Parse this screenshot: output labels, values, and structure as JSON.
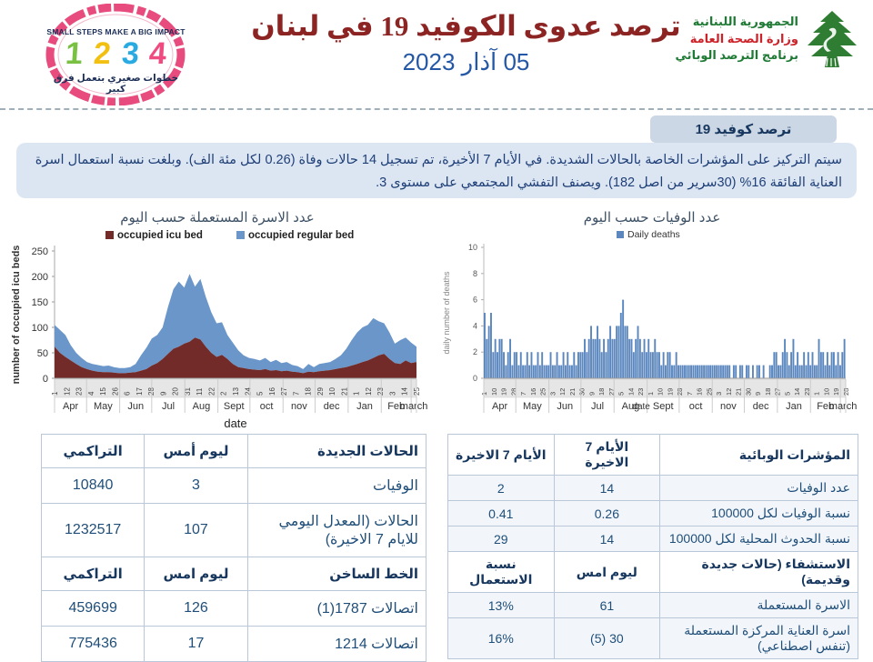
{
  "header": {
    "stamp_logo": {
      "top_text": "SMALL STEPS MAKE A BIG IMPACT",
      "digits": [
        "1",
        "2",
        "3",
        "4"
      ],
      "bottom_text": "خطوات صغيري بتعمل فرق كبير"
    },
    "title": "ترصد عدوى الكوفيد 19 في لبنان",
    "date": "05 آذار 2023",
    "ministry_logo": {
      "line1": "الجمهورية اللبنانية",
      "line2": "وزارة الصحة العامة",
      "line3": "برنامج الترصد الوبائي"
    }
  },
  "intro": {
    "tab_label": "ترصد كوفيد 19",
    "paragraph": "سيتم التركيز على المؤشرات الخاصة بالحالات الشديدة. في الأيام 7 الأخيرة، تم تسجيل 14 حالات وفاة  (0.26 لكل مئة الف). وبلغت نسبة استعمال اسرة العناية الفائقة 16% (30سرير من اصل 182). ويصنف التفشي المجتمعي على مستوى 3."
  },
  "colors": {
    "title_maroon": "#8b2422",
    "date_blue": "#2457a5",
    "navy": "#17375e",
    "icu_area": "#722b28",
    "regular_area": "#6b96c9",
    "death_bar": "#5b87be"
  },
  "chart_data": [
    {
      "type": "area",
      "title": "عدد الاسرة المستعملة حسب اليوم",
      "xlabel": "date",
      "ylabel": "number of occupied icu beds",
      "ylim": [
        0,
        250
      ],
      "yticks": [
        0,
        50,
        100,
        150,
        200,
        250
      ],
      "stacked": true,
      "legend": [
        "occupied icu bed",
        "occupied regular bed"
      ],
      "legend_colors": [
        "#722b28",
        "#6b96c9"
      ],
      "legend_position": "top",
      "grid": false,
      "x_day_ticks": [
        "1",
        "12",
        "23",
        "4",
        "15",
        "26",
        "6",
        "17",
        "28",
        "9",
        "20",
        "31",
        "11",
        "22",
        "2",
        "13",
        "24",
        "5",
        "16",
        "27",
        "7",
        "18",
        "29",
        "10",
        "21",
        "1",
        "12",
        "23",
        "3",
        "14",
        "25"
      ],
      "months": [
        "Apr",
        "May",
        "Jun",
        "Jul",
        "Aug",
        "Sept",
        "oct",
        "nov",
        "dec",
        "Jan",
        "Feb",
        "march"
      ],
      "month_day_boundaries": [
        0,
        30,
        61,
        91,
        122,
        153,
        183,
        214,
        244,
        275,
        306,
        334,
        339
      ],
      "sample_step_days": 5,
      "series": [
        {
          "name": "occupied icu bed",
          "values": [
            62,
            50,
            42,
            35,
            28,
            22,
            18,
            15,
            13,
            12,
            12,
            11,
            10,
            10,
            11,
            12,
            15,
            18,
            25,
            30,
            38,
            48,
            58,
            62,
            68,
            72,
            80,
            76,
            62,
            50,
            42,
            46,
            38,
            28,
            22,
            20,
            18,
            17,
            16,
            18,
            15,
            16,
            14,
            15,
            13,
            12,
            10,
            13,
            12,
            14,
            15,
            16,
            18,
            20,
            22,
            25,
            28,
            32,
            35,
            40,
            45,
            48,
            38,
            30,
            28,
            35,
            30,
            32
          ]
        },
        {
          "name": "occupied regular bed",
          "values": [
            43,
            45,
            43,
            30,
            22,
            18,
            14,
            13,
            13,
            12,
            13,
            11,
            10,
            10,
            11,
            16,
            30,
            42,
            53,
            55,
            62,
            92,
            117,
            128,
            110,
            133,
            100,
            119,
            98,
            80,
            66,
            64,
            47,
            42,
            33,
            25,
            22,
            21,
            19,
            22,
            17,
            20,
            16,
            17,
            13,
            12,
            8,
            15,
            10,
            14,
            15,
            16,
            20,
            25,
            36,
            50,
            62,
            68,
            70,
            78,
            67,
            60,
            52,
            38,
            47,
            45,
            40,
            30
          ]
        }
      ]
    },
    {
      "type": "bar",
      "title": "عدد الوفيات حسب اليوم",
      "xlabel": "date",
      "ylabel": "daily number of deaths",
      "ylim": [
        0,
        10
      ],
      "yticks": [
        0,
        2,
        4,
        6,
        8,
        10
      ],
      "legend": [
        "Daily deaths"
      ],
      "legend_colors": [
        "#5b87be"
      ],
      "legend_position": "top",
      "grid": false,
      "x_day_ticks": [
        "1",
        "10",
        "19",
        "28",
        "7",
        "16",
        "25",
        "3",
        "12",
        "21",
        "30",
        "9",
        "18",
        "27",
        "5",
        "14",
        "23",
        "1",
        "10",
        "19",
        "28",
        "7",
        "16",
        "25",
        "3",
        "12",
        "21",
        "30",
        "9",
        "18",
        "27",
        "5",
        "14",
        "23",
        "1",
        "10",
        "19",
        "28"
      ],
      "months": [
        "Apr",
        "May",
        "Jun",
        "Jul",
        "Aug",
        "Sept",
        "oct",
        "nov",
        "dec",
        "Jan",
        "Feb",
        "march"
      ],
      "month_day_boundaries": [
        0,
        30,
        61,
        91,
        122,
        153,
        183,
        214,
        244,
        275,
        306,
        334,
        339
      ],
      "sample_step_days": 2,
      "values": [
        5,
        3,
        4,
        5,
        2,
        3,
        2,
        3,
        3,
        2,
        1,
        2,
        3,
        1,
        2,
        2,
        1,
        2,
        1,
        1,
        2,
        1,
        2,
        1,
        1,
        2,
        1,
        2,
        1,
        1,
        1,
        2,
        1,
        1,
        2,
        1,
        1,
        2,
        1,
        2,
        1,
        1,
        2,
        1,
        2,
        2,
        2,
        3,
        2,
        3,
        4,
        3,
        3,
        4,
        3,
        2,
        3,
        2,
        3,
        4,
        3,
        3,
        4,
        4,
        5,
        6,
        4,
        4,
        3,
        3,
        2,
        3,
        4,
        3,
        2,
        3,
        2,
        3,
        2,
        2,
        3,
        2,
        2,
        1,
        2,
        1,
        2,
        2,
        1,
        1,
        2,
        1,
        1,
        1,
        1,
        1,
        1,
        1,
        1,
        1,
        1,
        1,
        1,
        1,
        1,
        1,
        1,
        1,
        1,
        1,
        1,
        1,
        1,
        1,
        1,
        1,
        0,
        1,
        1,
        0,
        1,
        1,
        0,
        1,
        1,
        0,
        1,
        0,
        1,
        1,
        0,
        1,
        0,
        0,
        1,
        1,
        2,
        2,
        1,
        1,
        2,
        3,
        2,
        1,
        2,
        3,
        1,
        2,
        1,
        1,
        2,
        1,
        2,
        1,
        2,
        1,
        1,
        3,
        2,
        2,
        1,
        2,
        1,
        2,
        2,
        1,
        2,
        1,
        2,
        3
      ]
    }
  ],
  "tables": {
    "left": {
      "rows": [
        {
          "type": "header",
          "cells": [
            "الحالات الجديدة",
            "ليوم أمس",
            "التراكمي"
          ]
        },
        {
          "type": "data",
          "cells": [
            "الوفيات",
            "3",
            "10840"
          ]
        },
        {
          "type": "data",
          "cells": [
            "الحالات (المعدل اليومي للايام 7 الاخيرة)",
            "107",
            "1232517"
          ]
        },
        {
          "type": "header",
          "cells": [
            "الخط الساخن",
            "ليوم امس",
            "التراكمي"
          ]
        },
        {
          "type": "data",
          "cells": [
            "اتصالات 1787(1)",
            "126",
            "459699"
          ]
        },
        {
          "type": "data",
          "cells": [
            "اتصالات 1214",
            "17",
            "775436"
          ]
        }
      ]
    },
    "right": {
      "rows": [
        {
          "type": "header",
          "cells": [
            "المؤشرات الوبائية",
            "الأيام 7 الاخيرة",
            "الأيام 7 الاخيرة"
          ]
        },
        {
          "type": "data",
          "cells": [
            "عدد الوفيات",
            "14",
            "2"
          ]
        },
        {
          "type": "data",
          "cells": [
            "نسبة الوفيات لكل 100000",
            "0.26",
            "0.41"
          ]
        },
        {
          "type": "data",
          "cells": [
            "نسبة الحدوث المحلية لكل 100000",
            "14",
            "29"
          ]
        },
        {
          "type": "header",
          "cells": [
            "الاستشفاء (حالات جديدة وقديمة)",
            "ليوم امس",
            "نسبة الاستعمال"
          ]
        },
        {
          "type": "data",
          "cells": [
            "الاسرة المستعملة",
            "61",
            "13%"
          ]
        },
        {
          "type": "data",
          "cells": [
            "اسرة العناية المركزة المستعملة (تنفس اصطناعي)",
            "30 (5)",
            "16%"
          ]
        }
      ]
    }
  }
}
